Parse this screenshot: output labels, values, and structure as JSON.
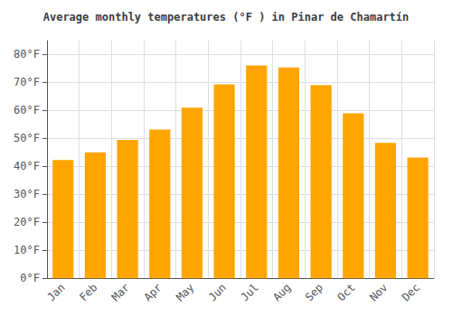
{
  "chart_data": {
    "type": "bar",
    "title": "Average monthly temperatures (°F ) in Pinar de Chamartín",
    "categories": [
      "Jan",
      "Feb",
      "Mar",
      "Apr",
      "May",
      "Jun",
      "Jul",
      "Aug",
      "Sep",
      "Oct",
      "Nov",
      "Dec"
    ],
    "values": [
      42.3,
      45.0,
      49.5,
      53.2,
      61.0,
      69.3,
      76.1,
      75.4,
      69.1,
      59.0,
      48.4,
      43.2
    ],
    "color": "#FFA500",
    "ylim": [
      0,
      85
    ],
    "yticks": [
      {
        "value": 0,
        "label": "0°F"
      },
      {
        "value": 10,
        "label": "10°F"
      },
      {
        "value": 20,
        "label": "20°F"
      },
      {
        "value": 30,
        "label": "30°F"
      },
      {
        "value": 40,
        "label": "40°F"
      },
      {
        "value": 50,
        "label": "50°F"
      },
      {
        "value": 60,
        "label": "60°F"
      },
      {
        "value": 70,
        "label": "70°F"
      },
      {
        "value": 80,
        "label": "80°F"
      }
    ],
    "grid": true
  }
}
